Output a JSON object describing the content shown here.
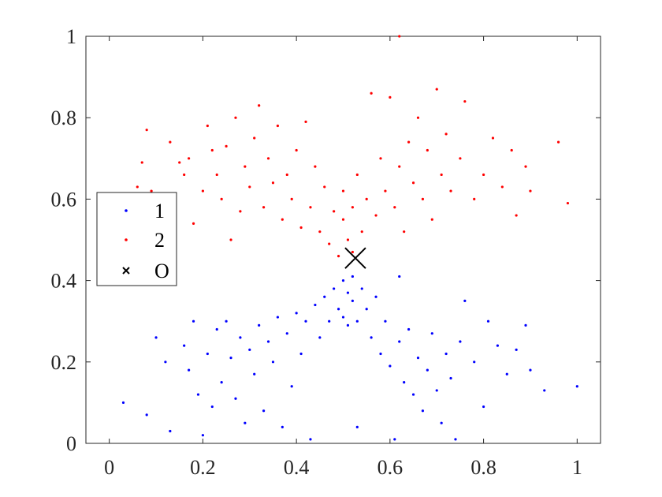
{
  "chart_data": {
    "type": "scatter",
    "xlim": [
      -0.05,
      1.05
    ],
    "ylim": [
      0,
      1
    ],
    "xticks": [
      "0",
      "0.2",
      "0.4",
      "0.6",
      "0.8",
      "1"
    ],
    "xtick_values": [
      0,
      0.2,
      0.4,
      0.6,
      0.8,
      1
    ],
    "yticks": [
      "0",
      "0.2",
      "0.4",
      "0.6",
      "0.8",
      "1"
    ],
    "ytick_values": [
      0,
      0.2,
      0.4,
      0.6,
      0.8,
      1
    ],
    "grid": false,
    "legend_position": "left",
    "series": [
      {
        "name": "1",
        "color": "#0000ff",
        "marker": "dot",
        "points": [
          [
            0.03,
            0.1
          ],
          [
            0.08,
            0.07
          ],
          [
            0.1,
            0.26
          ],
          [
            0.12,
            0.2
          ],
          [
            0.13,
            0.03
          ],
          [
            0.16,
            0.24
          ],
          [
            0.17,
            0.18
          ],
          [
            0.18,
            0.3
          ],
          [
            0.19,
            0.12
          ],
          [
            0.2,
            0.02
          ],
          [
            0.21,
            0.22
          ],
          [
            0.22,
            0.09
          ],
          [
            0.23,
            0.28
          ],
          [
            0.24,
            0.15
          ],
          [
            0.25,
            0.3
          ],
          [
            0.26,
            0.21
          ],
          [
            0.27,
            0.11
          ],
          [
            0.28,
            0.26
          ],
          [
            0.29,
            0.05
          ],
          [
            0.3,
            0.23
          ],
          [
            0.31,
            0.17
          ],
          [
            0.32,
            0.29
          ],
          [
            0.33,
            0.08
          ],
          [
            0.34,
            0.25
          ],
          [
            0.35,
            0.2
          ],
          [
            0.36,
            0.31
          ],
          [
            0.37,
            0.04
          ],
          [
            0.38,
            0.27
          ],
          [
            0.39,
            0.14
          ],
          [
            0.4,
            0.32
          ],
          [
            0.41,
            0.22
          ],
          [
            0.42,
            0.3
          ],
          [
            0.43,
            0.01
          ],
          [
            0.44,
            0.34
          ],
          [
            0.45,
            0.26
          ],
          [
            0.46,
            0.36
          ],
          [
            0.47,
            0.3
          ],
          [
            0.48,
            0.38
          ],
          [
            0.49,
            0.33
          ],
          [
            0.5,
            0.4
          ],
          [
            0.5,
            0.31
          ],
          [
            0.51,
            0.37
          ],
          [
            0.51,
            0.29
          ],
          [
            0.52,
            0.41
          ],
          [
            0.52,
            0.35
          ],
          [
            0.53,
            0.3
          ],
          [
            0.53,
            0.04
          ],
          [
            0.54,
            0.38
          ],
          [
            0.55,
            0.33
          ],
          [
            0.56,
            0.26
          ],
          [
            0.57,
            0.36
          ],
          [
            0.58,
            0.22
          ],
          [
            0.59,
            0.3
          ],
          [
            0.6,
            0.19
          ],
          [
            0.61,
            0.01
          ],
          [
            0.62,
            0.41
          ],
          [
            0.62,
            0.25
          ],
          [
            0.63,
            0.15
          ],
          [
            0.64,
            0.28
          ],
          [
            0.65,
            0.12
          ],
          [
            0.66,
            0.21
          ],
          [
            0.67,
            0.08
          ],
          [
            0.68,
            0.18
          ],
          [
            0.69,
            0.27
          ],
          [
            0.7,
            0.13
          ],
          [
            0.71,
            0.05
          ],
          [
            0.72,
            0.22
          ],
          [
            0.73,
            0.16
          ],
          [
            0.74,
            0.01
          ],
          [
            0.75,
            0.25
          ],
          [
            0.76,
            0.35
          ],
          [
            0.78,
            0.2
          ],
          [
            0.8,
            0.09
          ],
          [
            0.81,
            0.3
          ],
          [
            0.83,
            0.24
          ],
          [
            0.85,
            0.17
          ],
          [
            0.87,
            0.23
          ],
          [
            0.89,
            0.29
          ],
          [
            0.9,
            0.18
          ],
          [
            0.93,
            0.13
          ],
          [
            1.0,
            0.14
          ]
        ]
      },
      {
        "name": "2",
        "color": "#ff0000",
        "marker": "dot",
        "points": [
          [
            0.06,
            0.63
          ],
          [
            0.07,
            0.69
          ],
          [
            0.08,
            0.77
          ],
          [
            0.09,
            0.62
          ],
          [
            0.13,
            0.74
          ],
          [
            0.15,
            0.69
          ],
          [
            0.16,
            0.66
          ],
          [
            0.17,
            0.7
          ],
          [
            0.18,
            0.54
          ],
          [
            0.2,
            0.62
          ],
          [
            0.21,
            0.78
          ],
          [
            0.22,
            0.72
          ],
          [
            0.23,
            0.66
          ],
          [
            0.24,
            0.6
          ],
          [
            0.25,
            0.73
          ],
          [
            0.26,
            0.5
          ],
          [
            0.27,
            0.8
          ],
          [
            0.28,
            0.57
          ],
          [
            0.29,
            0.68
          ],
          [
            0.3,
            0.63
          ],
          [
            0.31,
            0.75
          ],
          [
            0.32,
            0.83
          ],
          [
            0.33,
            0.58
          ],
          [
            0.34,
            0.7
          ],
          [
            0.35,
            0.64
          ],
          [
            0.36,
            0.78
          ],
          [
            0.37,
            0.55
          ],
          [
            0.38,
            0.66
          ],
          [
            0.39,
            0.6
          ],
          [
            0.4,
            0.72
          ],
          [
            0.41,
            0.53
          ],
          [
            0.42,
            0.79
          ],
          [
            0.43,
            0.58
          ],
          [
            0.44,
            0.68
          ],
          [
            0.45,
            0.52
          ],
          [
            0.46,
            0.63
          ],
          [
            0.47,
            0.49
          ],
          [
            0.48,
            0.57
          ],
          [
            0.49,
            0.46
          ],
          [
            0.5,
            0.55
          ],
          [
            0.5,
            0.62
          ],
          [
            0.51,
            0.5
          ],
          [
            0.52,
            0.58
          ],
          [
            0.52,
            0.47
          ],
          [
            0.53,
            0.66
          ],
          [
            0.54,
            0.52
          ],
          [
            0.55,
            0.6
          ],
          [
            0.56,
            0.86
          ],
          [
            0.57,
            0.56
          ],
          [
            0.58,
            0.7
          ],
          [
            0.59,
            0.62
          ],
          [
            0.6,
            0.85
          ],
          [
            0.61,
            0.58
          ],
          [
            0.62,
            1.0
          ],
          [
            0.62,
            0.68
          ],
          [
            0.63,
            0.52
          ],
          [
            0.64,
            0.74
          ],
          [
            0.65,
            0.64
          ],
          [
            0.66,
            0.8
          ],
          [
            0.67,
            0.6
          ],
          [
            0.68,
            0.72
          ],
          [
            0.69,
            0.55
          ],
          [
            0.7,
            0.87
          ],
          [
            0.71,
            0.66
          ],
          [
            0.72,
            0.76
          ],
          [
            0.73,
            0.62
          ],
          [
            0.75,
            0.7
          ],
          [
            0.76,
            0.84
          ],
          [
            0.78,
            0.6
          ],
          [
            0.8,
            0.66
          ],
          [
            0.82,
            0.75
          ],
          [
            0.84,
            0.63
          ],
          [
            0.86,
            0.72
          ],
          [
            0.87,
            0.56
          ],
          [
            0.89,
            0.68
          ],
          [
            0.9,
            0.62
          ],
          [
            0.96,
            0.74
          ],
          [
            0.98,
            0.59
          ]
        ]
      },
      {
        "name": "O",
        "color": "#000000",
        "marker": "x",
        "points": [
          [
            0.526,
            0.455
          ]
        ]
      }
    ]
  }
}
